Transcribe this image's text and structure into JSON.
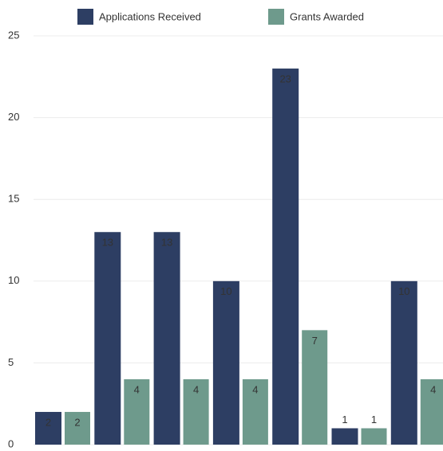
{
  "chart_data": {
    "type": "bar",
    "categories": [
      null,
      null,
      null,
      null,
      null,
      null,
      null
    ],
    "series": [
      {
        "name": "Applications Received",
        "color": "#2d3e63",
        "values": [
          2,
          13,
          13,
          10,
          23,
          1,
          10
        ]
      },
      {
        "name": "Grants Awarded",
        "color": "#6e9a8c",
        "values": [
          2,
          4,
          4,
          4,
          7,
          1,
          4
        ]
      }
    ],
    "ylim": [
      0,
      25
    ],
    "yticks": [
      0,
      5,
      10,
      15,
      20,
      25
    ],
    "grid": true,
    "legend": "top"
  }
}
